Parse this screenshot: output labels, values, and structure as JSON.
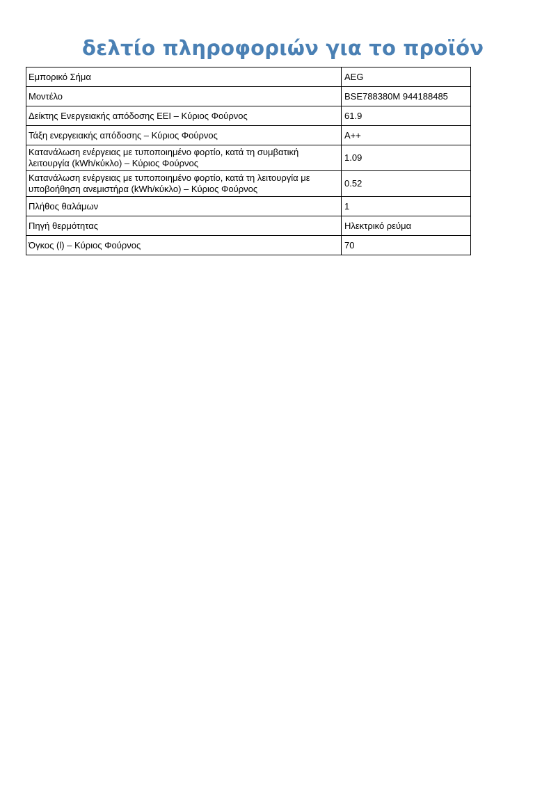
{
  "page": {
    "title": "δελτίο πληροφοριών για το προϊόν",
    "title_color": "#4a80b4"
  },
  "table": {
    "rows": [
      {
        "label": "Εμπορικό Σήμα",
        "value": "AEG"
      },
      {
        "label": "Μοντέλο",
        "value": "BSE788380M 944188485"
      },
      {
        "label": "Δείκτης Ενεργειακής απόδοσης EEI – Κύριος Φούρνος",
        "value": "61.9"
      },
      {
        "label": "Τάξη ενεργειακής απόδοσης – Κύριος Φούρνος",
        "value": "A++"
      },
      {
        "label": "Κατανάλωση ενέργειας με τυποποιημένο φορτίο, κατά τη συμβατική λειτουργία (kWh/κύκλο) – Κύριος Φούρνος",
        "value": "1.09"
      },
      {
        "label": "Κατανάλωση ενέργειας με τυποποιημένο φορτίο, κατά τη λειτουργία με υποβοήθηση ανεμιστήρα (kWh/κύκλο) – Κύριος Φούρνος",
        "value": "0.52"
      },
      {
        "label": "Πλήθος θαλάμων",
        "value": "1"
      },
      {
        "label": "Πηγή θερμότητας",
        "value": "Ηλεκτρικό ρεύμα"
      },
      {
        "label": "Όγκος (l) – Κύριος Φούρνος",
        "value": "70"
      }
    ]
  }
}
